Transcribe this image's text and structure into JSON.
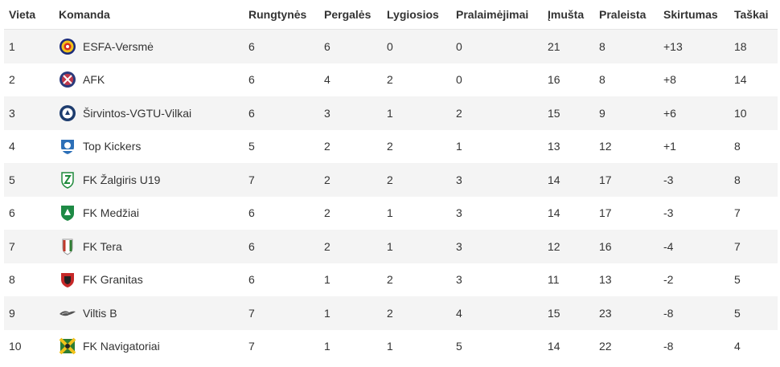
{
  "headers": {
    "place": "Vieta",
    "team": "Komanda",
    "played": "Rungtynės",
    "wins": "Pergalės",
    "draws": "Lygiosios",
    "losses": "Pralaimėjimai",
    "scored": "Įmušta",
    "conceded": "Praleista",
    "diff": "Skirtumas",
    "points": "Taškai"
  },
  "rows": [
    {
      "place": "1",
      "team": "ESFA-Versmė",
      "logo_icon": "esfa-versme-crest-icon",
      "played": "6",
      "wins": "6",
      "draws": "0",
      "losses": "0",
      "scored": "21",
      "conceded": "8",
      "diff": "+13",
      "points": "18"
    },
    {
      "place": "2",
      "team": "AFK",
      "logo_icon": "afk-crest-icon",
      "played": "6",
      "wins": "4",
      "draws": "2",
      "losses": "0",
      "scored": "16",
      "conceded": "8",
      "diff": "+8",
      "points": "14"
    },
    {
      "place": "3",
      "team": "Širvintos-VGTU-Vilkai",
      "logo_icon": "sirvintos-vgtu-vilkai-crest-icon",
      "played": "6",
      "wins": "3",
      "draws": "1",
      "losses": "2",
      "scored": "15",
      "conceded": "9",
      "diff": "+6",
      "points": "10"
    },
    {
      "place": "4",
      "team": "Top Kickers",
      "logo_icon": "top-kickers-crest-icon",
      "played": "5",
      "wins": "2",
      "draws": "2",
      "losses": "1",
      "scored": "13",
      "conceded": "12",
      "diff": "+1",
      "points": "8"
    },
    {
      "place": "5",
      "team": "FK Žalgiris U19",
      "logo_icon": "zalgiris-crest-icon",
      "played": "7",
      "wins": "2",
      "draws": "2",
      "losses": "3",
      "scored": "14",
      "conceded": "17",
      "diff": "-3",
      "points": "8"
    },
    {
      "place": "6",
      "team": "FK Medžiai",
      "logo_icon": "medziai-crest-icon",
      "played": "6",
      "wins": "2",
      "draws": "1",
      "losses": "3",
      "scored": "14",
      "conceded": "17",
      "diff": "-3",
      "points": "7"
    },
    {
      "place": "7",
      "team": "FK Tera",
      "logo_icon": "tera-crest-icon",
      "played": "6",
      "wins": "2",
      "draws": "1",
      "losses": "3",
      "scored": "12",
      "conceded": "16",
      "diff": "-4",
      "points": "7"
    },
    {
      "place": "8",
      "team": "FK Granitas",
      "logo_icon": "granitas-crest-icon",
      "played": "6",
      "wins": "1",
      "draws": "2",
      "losses": "3",
      "scored": "11",
      "conceded": "13",
      "diff": "-2",
      "points": "5"
    },
    {
      "place": "9",
      "team": "Viltis B",
      "logo_icon": "viltis-crest-icon",
      "played": "7",
      "wins": "1",
      "draws": "2",
      "losses": "4",
      "scored": "15",
      "conceded": "23",
      "diff": "-8",
      "points": "5"
    },
    {
      "place": "10",
      "team": "FK Navigatoriai",
      "logo_icon": "navigatoriai-crest-icon",
      "played": "7",
      "wins": "1",
      "draws": "1",
      "losses": "5",
      "scored": "14",
      "conceded": "22",
      "diff": "-8",
      "points": "4"
    }
  ],
  "colors": {
    "row_stripe": "#f4f4f4",
    "text": "#333333"
  }
}
